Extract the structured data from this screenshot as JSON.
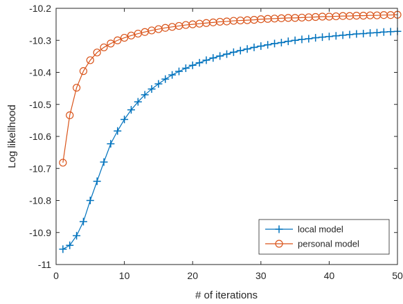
{
  "chart_data": {
    "type": "line",
    "title": "",
    "xlabel": "# of iterations",
    "ylabel": "Log likelihood",
    "xlim": [
      0,
      50
    ],
    "ylim": [
      -11,
      -10.2
    ],
    "xticks": [
      0,
      10,
      20,
      30,
      40,
      50
    ],
    "yticks": [
      -11,
      -10.9,
      -10.8,
      -10.7,
      -10.6,
      -10.5,
      -10.4,
      -10.3,
      -10.2
    ],
    "xtick_labels": [
      "0",
      "10",
      "20",
      "30",
      "40",
      "50"
    ],
    "ytick_labels": [
      "-11",
      "-10.9",
      "-10.8",
      "-10.7",
      "-10.6",
      "-10.5",
      "-10.4",
      "-10.3",
      "-10.2"
    ],
    "grid": false,
    "legend_position": "bottom-right",
    "x": [
      1,
      2,
      3,
      4,
      5,
      6,
      7,
      8,
      9,
      10,
      11,
      12,
      13,
      14,
      15,
      16,
      17,
      18,
      19,
      20,
      21,
      22,
      23,
      24,
      25,
      26,
      27,
      28,
      29,
      30,
      31,
      32,
      33,
      34,
      35,
      36,
      37,
      38,
      39,
      40,
      41,
      42,
      43,
      44,
      45,
      46,
      47,
      48,
      49,
      50
    ],
    "series": [
      {
        "name": "local model",
        "color": "#0072BD",
        "marker": "plus",
        "values": [
          -10.952,
          -10.94,
          -10.91,
          -10.866,
          -10.8,
          -10.74,
          -10.68,
          -10.623,
          -10.583,
          -10.547,
          -10.517,
          -10.492,
          -10.47,
          -10.452,
          -10.436,
          -10.421,
          -10.408,
          -10.397,
          -10.387,
          -10.378,
          -10.37,
          -10.362,
          -10.355,
          -10.349,
          -10.343,
          -10.337,
          -10.332,
          -10.327,
          -10.322,
          -10.318,
          -10.314,
          -10.31,
          -10.307,
          -10.303,
          -10.3,
          -10.297,
          -10.295,
          -10.292,
          -10.29,
          -10.288,
          -10.286,
          -10.284,
          -10.282,
          -10.28,
          -10.279,
          -10.277,
          -10.276,
          -10.274,
          -10.273,
          -10.272
        ]
      },
      {
        "name": "personal model",
        "color": "#D95319",
        "marker": "circle",
        "values": [
          -10.682,
          -10.534,
          -10.448,
          -10.396,
          -10.362,
          -10.338,
          -10.322,
          -10.31,
          -10.3,
          -10.292,
          -10.285,
          -10.279,
          -10.274,
          -10.269,
          -10.265,
          -10.261,
          -10.258,
          -10.255,
          -10.252,
          -10.25,
          -10.248,
          -10.246,
          -10.244,
          -10.242,
          -10.241,
          -10.239,
          -10.238,
          -10.237,
          -10.236,
          -10.234,
          -10.233,
          -10.232,
          -10.231,
          -10.23,
          -10.23,
          -10.229,
          -10.228,
          -10.227,
          -10.226,
          -10.226,
          -10.225,
          -10.224,
          -10.224,
          -10.223,
          -10.223,
          -10.222,
          -10.222,
          -10.221,
          -10.221,
          -10.22
        ]
      }
    ]
  }
}
